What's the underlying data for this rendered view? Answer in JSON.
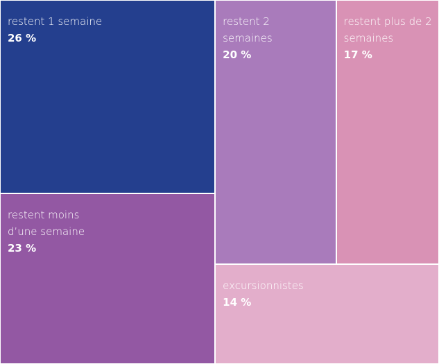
{
  "chart_data": {
    "type": "treemap",
    "categories": [
      "restent 1 semaine",
      "restent moins d’une semaine",
      "restent 2 semaines",
      "restent plus de 2 semaines",
      "excursionnistes"
    ],
    "values": [
      26,
      23,
      20,
      17,
      14
    ],
    "value_labels": [
      "26 %",
      "23 %",
      "20 %",
      "17 %",
      "14 %"
    ],
    "colors": [
      "#243f8e",
      "#9358a3",
      "#a97bbb",
      "#d992b5",
      "#e3aecb"
    ]
  }
}
